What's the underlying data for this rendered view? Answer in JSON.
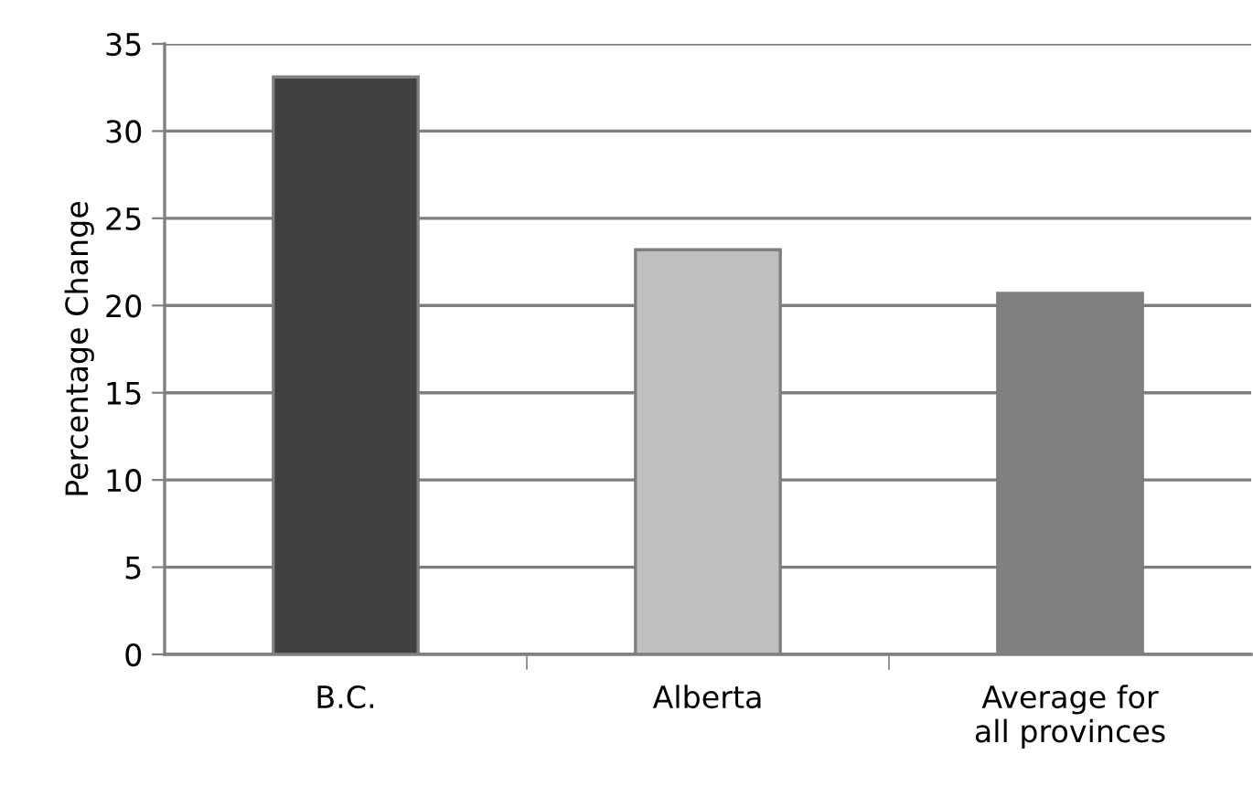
{
  "chart_data": {
    "type": "bar",
    "ylabel": "Percentage Change",
    "categories": [
      "B.C.",
      "Alberta",
      "Average for\nall provinces"
    ],
    "values": [
      33.1,
      23.2,
      20.7
    ],
    "colors": [
      "#404040",
      "#bfbfbf",
      "#808080"
    ],
    "ylim": [
      0,
      35
    ],
    "yticks": [
      0,
      5,
      10,
      15,
      20,
      25,
      30,
      35
    ],
    "grid": "y"
  }
}
